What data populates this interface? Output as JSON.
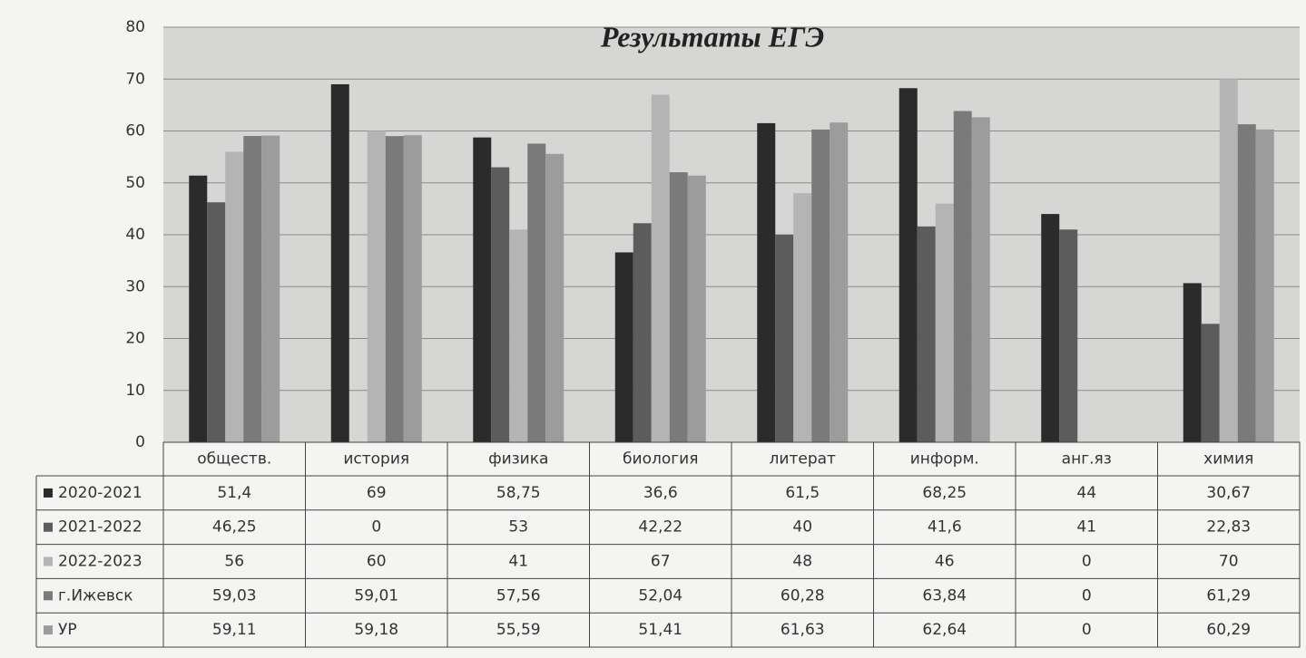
{
  "chart_data": {
    "type": "bar",
    "title": "Результаты ЕГЭ",
    "categories": [
      "обществ.",
      "история",
      "физика",
      "биология",
      "литерат",
      "информ.",
      "анг.яз",
      "химия"
    ],
    "series": [
      {
        "name": "2020-2021",
        "color": "#2b2b2b",
        "values": [
          51.4,
          69,
          58.75,
          36.6,
          61.5,
          68.25,
          44,
          30.67
        ],
        "value_labels": [
          "51,4",
          "69",
          "58,75",
          "36,6",
          "61,5",
          "68,25",
          "44",
          "30,67"
        ]
      },
      {
        "name": "2021-2022",
        "color": "#5c5c5c",
        "values": [
          46.25,
          0,
          53,
          42.22,
          40,
          41.6,
          41,
          22.83
        ],
        "value_labels": [
          "46,25",
          "0",
          "53",
          "42,22",
          "40",
          "41,6",
          "41",
          "22,83"
        ]
      },
      {
        "name": "2022-2023",
        "color": "#b4b4b4",
        "values": [
          56,
          60,
          41,
          67,
          48,
          46,
          0,
          70
        ],
        "value_labels": [
          "56",
          "60",
          "41",
          "67",
          "48",
          "46",
          "0",
          "70"
        ]
      },
      {
        "name": "г.Ижевск",
        "color": "#7a7a7a",
        "values": [
          59.03,
          59.01,
          57.56,
          52.04,
          60.28,
          63.84,
          0,
          61.29
        ],
        "value_labels": [
          "59,03",
          "59,01",
          "57,56",
          "52,04",
          "60,28",
          "63,84",
          "0",
          "61,29"
        ]
      },
      {
        "name": "УР",
        "color": "#9c9c9c",
        "values": [
          59.11,
          59.18,
          55.59,
          51.41,
          61.63,
          62.64,
          0,
          60.29
        ],
        "value_labels": [
          "59,11",
          "59,18",
          "55,59",
          "51,41",
          "61,63",
          "62,64",
          "0",
          "60,29"
        ]
      }
    ],
    "ylim": [
      0,
      80
    ],
    "yticks": [
      0,
      10,
      20,
      30,
      40,
      50,
      60,
      70,
      80
    ],
    "grid": true
  }
}
